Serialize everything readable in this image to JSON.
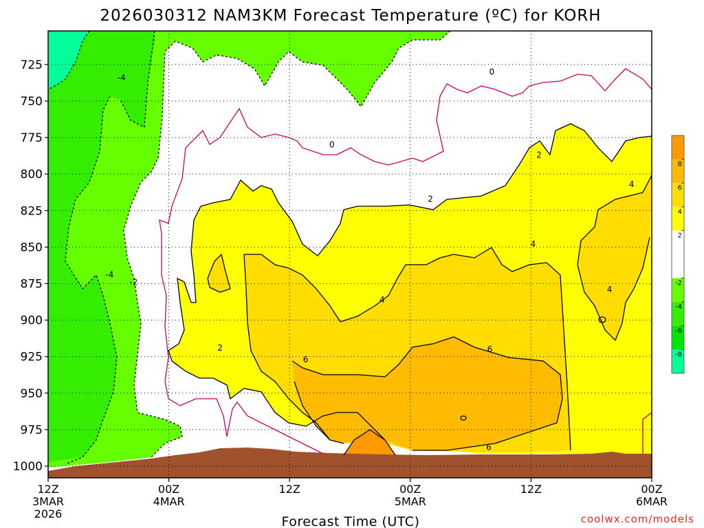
{
  "chart_data": {
    "type": "heatmap",
    "title": "2026030312 NAM3KM Forecast Temperature (ºC) for KORH",
    "xlabel": "Forecast Time (UTC)",
    "ylabel": "",
    "credit": "coolwx.com/models",
    "x_ticks": [
      {
        "hours": 0,
        "lines": [
          "12Z",
          "3MAR",
          "2026"
        ]
      },
      {
        "hours": 12,
        "lines": [
          "00Z",
          "4MAR"
        ]
      },
      {
        "hours": 24,
        "lines": [
          "12Z"
        ]
      },
      {
        "hours": 36,
        "lines": [
          "00Z",
          "5MAR"
        ]
      },
      {
        "hours": 48,
        "lines": [
          "12Z"
        ]
      },
      {
        "hours": 60,
        "lines": [
          "00Z",
          "6MAR"
        ]
      }
    ],
    "xlim": [
      0,
      60
    ],
    "ylim": [
      1008,
      702
    ],
    "y_ticks": [
      725,
      750,
      775,
      800,
      825,
      850,
      875,
      900,
      925,
      950,
      975,
      1000
    ],
    "grid": true,
    "colorbar": {
      "boundaries": [
        -10,
        -8,
        -6,
        -4,
        -2,
        2,
        4,
        6,
        8,
        10
      ],
      "labels": [
        "-8",
        "-6",
        "-4",
        "-2",
        "2",
        "4",
        "6",
        "8"
      ],
      "colors": [
        "#00ff99",
        "#00e600",
        "#33ee00",
        "#66ff00",
        "#ffffff",
        "#ffff00",
        "#ffdd00",
        "#ffbb00",
        "#ff9900"
      ]
    },
    "contour_labels": [
      {
        "text": "-4",
        "x": 7.3,
        "y": 734
      },
      {
        "text": "-4",
        "x": 6.1,
        "y": 869
      },
      {
        "text": "-2",
        "x": 8.5,
        "y": 874
      },
      {
        "text": "0",
        "x": 44.1,
        "y": 730
      },
      {
        "text": "0",
        "x": 28.2,
        "y": 780
      },
      {
        "text": "2",
        "x": 48.8,
        "y": 787
      },
      {
        "text": "2",
        "x": 38.0,
        "y": 817
      },
      {
        "text": "2",
        "x": 17.1,
        "y": 919
      },
      {
        "text": "4",
        "x": 58.0,
        "y": 807
      },
      {
        "text": "4",
        "x": 48.2,
        "y": 848
      },
      {
        "text": "4",
        "x": 55.8,
        "y": 879
      },
      {
        "text": "4",
        "x": 33.2,
        "y": 886
      },
      {
        "text": "6",
        "x": 43.9,
        "y": 920
      },
      {
        "text": "6",
        "x": 25.6,
        "y": 927
      },
      {
        "text": "6",
        "x": 43.8,
        "y": 987
      }
    ]
  }
}
